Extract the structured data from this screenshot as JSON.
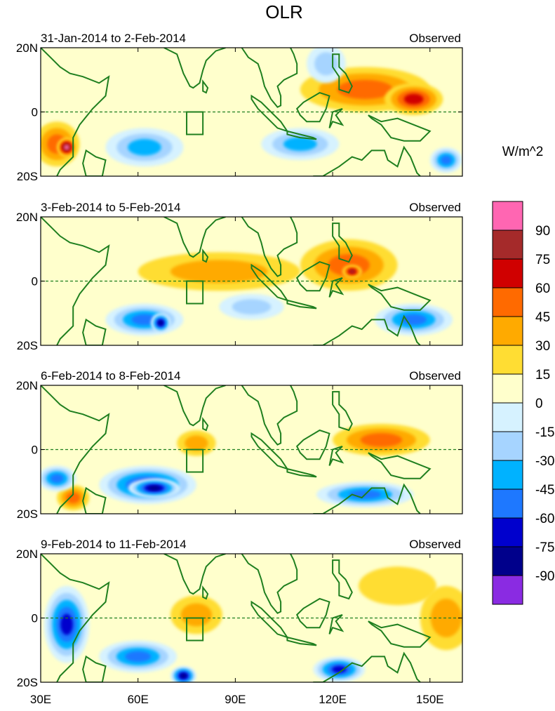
{
  "title": "OLR",
  "units": "W/m^2",
  "status_label": "Observed",
  "x_tick_labels": [
    "30E",
    "60E",
    "90E",
    "120E",
    "150E"
  ],
  "x_tick_values": [
    30,
    60,
    90,
    120,
    150
  ],
  "y_tick_labels": [
    "20N",
    "0",
    "20S"
  ],
  "y_tick_values": [
    20,
    0,
    -20
  ],
  "colorbar": {
    "labels": [
      "90",
      "75",
      "60",
      "45",
      "30",
      "15",
      "0",
      "-15",
      "-30",
      "-45",
      "-60",
      "-75",
      "-90"
    ],
    "colors": [
      "#ff66b2",
      "#a52a2a",
      "#d00000",
      "#ff6a00",
      "#ffaa00",
      "#ffdd33",
      "#ffffcc",
      "#d6f2ff",
      "#a6d4ff",
      "#00b2ff",
      "#1e78ff",
      "#0000cd",
      "#00008b",
      "#8a2be2"
    ]
  },
  "colors": {
    "coast": "#1f7f1f",
    "equator": "#1f7f1f",
    "box": "#1f7f1f"
  },
  "chart_data": {
    "type": "heatmap",
    "variable": "OLR anomaly",
    "xlim": [
      30,
      160
    ],
    "ylim": [
      -20,
      20
    ],
    "box_region": {
      "lon": [
        75,
        80
      ],
      "lat": [
        -7,
        0
      ]
    },
    "panels": [
      {
        "period": "31-Jan-2014 to 2-Feb-2014",
        "label": "Observed",
        "features": [
          {
            "lon": 130,
            "lat": 7,
            "rx": 20,
            "ry": 7,
            "value": 45
          },
          {
            "lon": 145,
            "lat": 4,
            "rx": 9,
            "ry": 5,
            "value": 60
          },
          {
            "lon": 35,
            "lat": -10,
            "rx": 7,
            "ry": 7,
            "value": 45
          },
          {
            "lon": 38,
            "lat": -11,
            "rx": 3,
            "ry": 3,
            "value": 90
          },
          {
            "lon": 62,
            "lat": -11,
            "rx": 12,
            "ry": 6,
            "value": -45
          },
          {
            "lon": 110,
            "lat": -10,
            "rx": 12,
            "ry": 5,
            "value": -45
          },
          {
            "lon": 118,
            "lat": 15,
            "rx": 6,
            "ry": 6,
            "value": -30
          },
          {
            "lon": 155,
            "lat": -15,
            "rx": 5,
            "ry": 4,
            "value": -60
          }
        ]
      },
      {
        "period": "3-Feb-2014 to 5-Feb-2014",
        "label": "Observed",
        "features": [
          {
            "lon": 85,
            "lat": 3,
            "rx": 25,
            "ry": 6,
            "value": 30
          },
          {
            "lon": 125,
            "lat": 5,
            "rx": 15,
            "ry": 8,
            "value": 45
          },
          {
            "lon": 126,
            "lat": 3,
            "rx": 3,
            "ry": 2,
            "value": 75
          },
          {
            "lon": 62,
            "lat": -12,
            "rx": 12,
            "ry": 5,
            "value": -60
          },
          {
            "lon": 67,
            "lat": -13,
            "rx": 3,
            "ry": 3,
            "value": -90
          },
          {
            "lon": 145,
            "lat": -12,
            "rx": 12,
            "ry": 5,
            "value": -60
          },
          {
            "lon": 95,
            "lat": -8,
            "rx": 10,
            "ry": 4,
            "value": -30
          }
        ]
      },
      {
        "period": "6-Feb-2014 to 8-Feb-2014",
        "label": "Observed",
        "features": [
          {
            "lon": 135,
            "lat": 3,
            "rx": 15,
            "ry": 5,
            "value": 45
          },
          {
            "lon": 78,
            "lat": 2,
            "rx": 6,
            "ry": 4,
            "value": 30
          },
          {
            "lon": 63,
            "lat": -11,
            "rx": 15,
            "ry": 6,
            "value": -75
          },
          {
            "lon": 65,
            "lat": -12,
            "rx": 8,
            "ry": 3,
            "value": -90
          },
          {
            "lon": 130,
            "lat": -14,
            "rx": 15,
            "ry": 4,
            "value": -60
          },
          {
            "lon": 40,
            "lat": -15,
            "rx": 5,
            "ry": 4,
            "value": 45
          },
          {
            "lon": 35,
            "lat": -9,
            "rx": 6,
            "ry": 4,
            "value": -60
          }
        ]
      },
      {
        "period": "9-Feb-2014 to 11-Feb-2014",
        "label": "Observed",
        "features": [
          {
            "lon": 38,
            "lat": -2,
            "rx": 7,
            "ry": 12,
            "value": -75
          },
          {
            "lon": 60,
            "lat": -12,
            "rx": 12,
            "ry": 5,
            "value": -60
          },
          {
            "lon": 74,
            "lat": -18,
            "rx": 4,
            "ry": 3,
            "value": -90
          },
          {
            "lon": 78,
            "lat": 1,
            "rx": 8,
            "ry": 6,
            "value": 30
          },
          {
            "lon": 122,
            "lat": -16,
            "rx": 8,
            "ry": 4,
            "value": -75
          },
          {
            "lon": 155,
            "lat": 0,
            "rx": 8,
            "ry": 10,
            "value": 30
          },
          {
            "lon": 140,
            "lat": 10,
            "rx": 12,
            "ry": 6,
            "value": 15
          }
        ]
      }
    ]
  }
}
